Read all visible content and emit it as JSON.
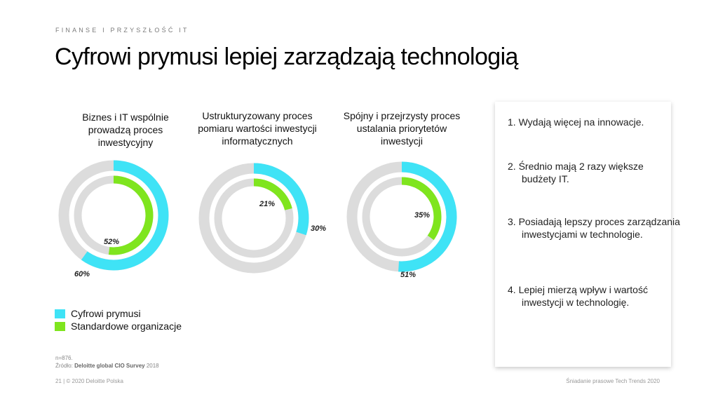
{
  "header": {
    "kicker": "FINANSE I PRZYSZŁOŚĆ IT",
    "title": "Cyfrowi prymusi lepiej zarządzają technologią"
  },
  "colors": {
    "cyan": "#3fe3f6",
    "green": "#7fe51e",
    "track": "#dcdcdc"
  },
  "chart_data": [
    {
      "type": "pie",
      "variant": "nested-donut",
      "title": "Biznes i IT wspólnie prowadzą proces inwestycyjny",
      "series": [
        {
          "name": "Cyfrowi prymusi",
          "value": 60,
          "label": "60%"
        },
        {
          "name": "Standardowe organizacje",
          "value": 52,
          "label": "52%"
        }
      ]
    },
    {
      "type": "pie",
      "variant": "nested-donut",
      "title": "Ustrukturyzowany proces pomiaru wartości inwestycji informatycznych",
      "series": [
        {
          "name": "Cyfrowi prymusi",
          "value": 30,
          "label": "30%"
        },
        {
          "name": "Standardowe organizacje",
          "value": 21,
          "label": "21%"
        }
      ]
    },
    {
      "type": "pie",
      "variant": "nested-donut",
      "title": "Spójny i przejrzysty proces ustalania priorytetów inwestycji",
      "series": [
        {
          "name": "Cyfrowi prymusi",
          "value": 51,
          "label": "51%"
        },
        {
          "name": "Standardowe organizacje",
          "value": 35,
          "label": "35%"
        }
      ]
    }
  ],
  "legend": [
    {
      "label": "Cyfrowi prymusi",
      "color": "#3fe3f6"
    },
    {
      "label": "Standardowe organizacje",
      "color": "#7fe51e"
    }
  ],
  "panel": {
    "items": [
      "1.  Wydają więcej na innowacje.",
      "2.  Średnio mają 2 razy większe budżety IT.",
      "3.  Posiadają lepszy proces zarządzania inwestycjami w technologie.",
      "4.  Lepiej mierzą wpływ i wartość inwestycji w technologię."
    ]
  },
  "footnote": {
    "n": "n=876.",
    "source_prefix": "Źródło: ",
    "source_bold": "Deloitte global CIO Survey",
    "source_year": " 2018"
  },
  "footer": {
    "left": "21 | © 2020 Deloitte Polska",
    "right": "Śniadanie prasowe Tech Trends 2020"
  }
}
